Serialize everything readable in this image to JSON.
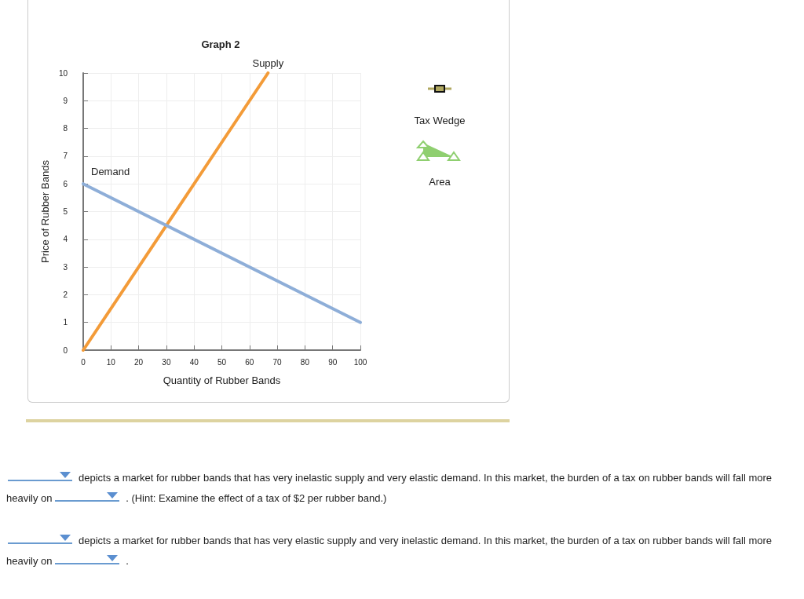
{
  "chart_data": {
    "type": "line",
    "title": "Graph 2",
    "xlabel": "Quantity of Rubber Bands",
    "ylabel": "Price of Rubber Bands",
    "series": [
      {
        "name": "Supply",
        "color": "#f39b38",
        "x": [
          0,
          66.67
        ],
        "values": [
          0,
          10
        ]
      },
      {
        "name": "Demand",
        "color": "#8eaed8",
        "x": [
          0,
          100
        ],
        "values": [
          6,
          1
        ]
      }
    ],
    "xlim": [
      0,
      100
    ],
    "xticks": [
      0,
      10,
      20,
      30,
      40,
      50,
      60,
      70,
      80,
      90,
      100
    ],
    "ylim": [
      0,
      10
    ],
    "yticks": [
      0,
      1,
      2,
      3,
      4,
      5,
      6,
      7,
      8,
      9,
      10
    ],
    "grid": true,
    "marker": "none",
    "line_style": "solid",
    "annotations": [
      "Tax Wedge",
      "Area",
      "depicts a market for rubber bands that has very inelastic supply and very elastic demand. In this market, the burden of a tax on rubber bands will fall more heavily on",
      ". (Hint: Examine the effect of a tax of $2 per rubber band.)",
      "depicts a market for rubber bands that has very elastic supply and very inelastic demand. In this market, the burden of a tax on rubber bands will fall more heavily on",
      "."
    ]
  }
}
